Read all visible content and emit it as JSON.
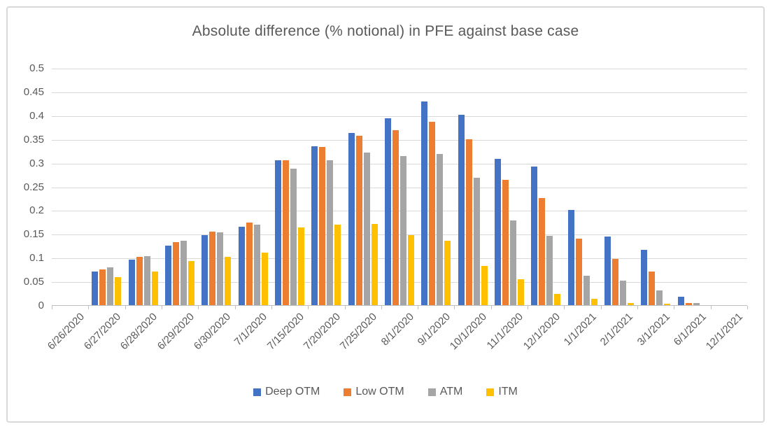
{
  "chart_data": {
    "type": "bar",
    "title": "Absolute difference (% notional) in PFE against base case",
    "categories": [
      "6/26/2020",
      "6/27/2020",
      "6/28/2020",
      "6/29/2020",
      "6/30/2020",
      "7/1/2020",
      "7/15/2020",
      "7/20/2020",
      "7/25/2020",
      "8/1/2020",
      "9/1/2020",
      "10/1/2020",
      "11/1/2020",
      "12/1/2020",
      "1/1/2021",
      "2/1/2021",
      "3/1/2021",
      "6/1/2021",
      "12/1/2021"
    ],
    "series": [
      {
        "name": "Deep OTM",
        "color": "#4472C4",
        "values": [
          0,
          0.071,
          0.096,
          0.125,
          0.147,
          0.165,
          0.305,
          0.335,
          0.363,
          0.394,
          0.429,
          0.401,
          0.308,
          0.292,
          0.201,
          0.144,
          0.116,
          0.017,
          0
        ]
      },
      {
        "name": "Low OTM",
        "color": "#ED7D31",
        "values": [
          0,
          0.075,
          0.102,
          0.133,
          0.155,
          0.174,
          0.306,
          0.333,
          0.357,
          0.369,
          0.386,
          0.35,
          0.264,
          0.226,
          0.14,
          0.097,
          0.071,
          0.004,
          0
        ]
      },
      {
        "name": "ATM",
        "color": "#A5A5A5",
        "values": [
          0,
          0.079,
          0.103,
          0.135,
          0.153,
          0.17,
          0.288,
          0.306,
          0.321,
          0.314,
          0.318,
          0.268,
          0.178,
          0.146,
          0.062,
          0.051,
          0.031,
          0.004,
          0
        ]
      },
      {
        "name": "ITM",
        "color": "#FFC000",
        "values": [
          0,
          0.059,
          0.071,
          0.093,
          0.102,
          0.111,
          0.164,
          0.169,
          0.171,
          0.147,
          0.136,
          0.083,
          0.055,
          0.023,
          0.013,
          0.004,
          0.003,
          0,
          0
        ]
      }
    ],
    "ylim": [
      0,
      0.5
    ],
    "ytick_step": 0.05,
    "ytick_labels": [
      "0",
      "0.05",
      "0.1",
      "0.15",
      "0.2",
      "0.25",
      "0.3",
      "0.35",
      "0.4",
      "0.45",
      "0.5"
    ],
    "grid": true,
    "legend_position": "bottom",
    "colors": {
      "gridline": "#d9d9d9",
      "axis_line": "#bfbfbf",
      "text": "#595959",
      "frame_border": "#d9d9d9",
      "background": "#ffffff"
    }
  }
}
